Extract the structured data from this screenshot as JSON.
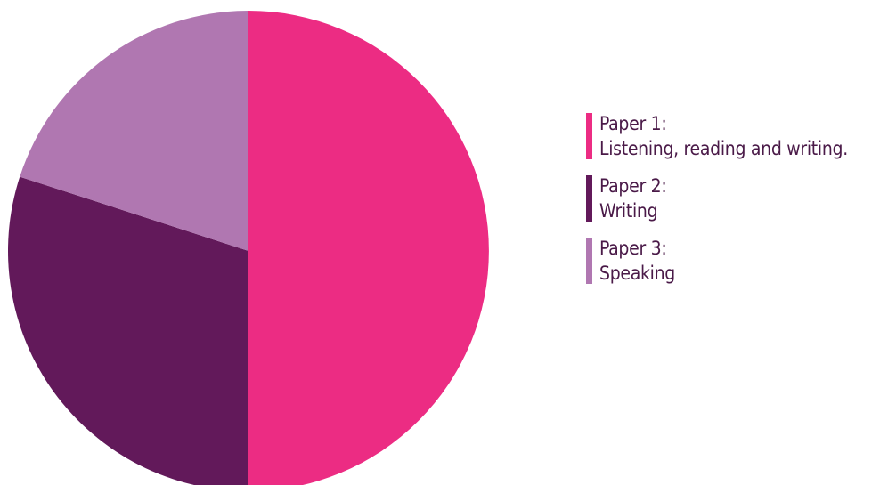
{
  "chart_data": {
    "type": "pie",
    "title": "",
    "slices": [
      {
        "label": "Paper 1:",
        "description": "Listening, reading and writing.",
        "value": 50,
        "color": "#ec2c83"
      },
      {
        "label": "Paper 2:",
        "description": "Writing",
        "value": 30,
        "color": "#62195a"
      },
      {
        "label": "Paper 3:",
        "description": "Speaking",
        "value": 20,
        "color": "#b077b1"
      }
    ],
    "start_position": "top",
    "direction": "clockwise",
    "legend_placement": "right"
  }
}
